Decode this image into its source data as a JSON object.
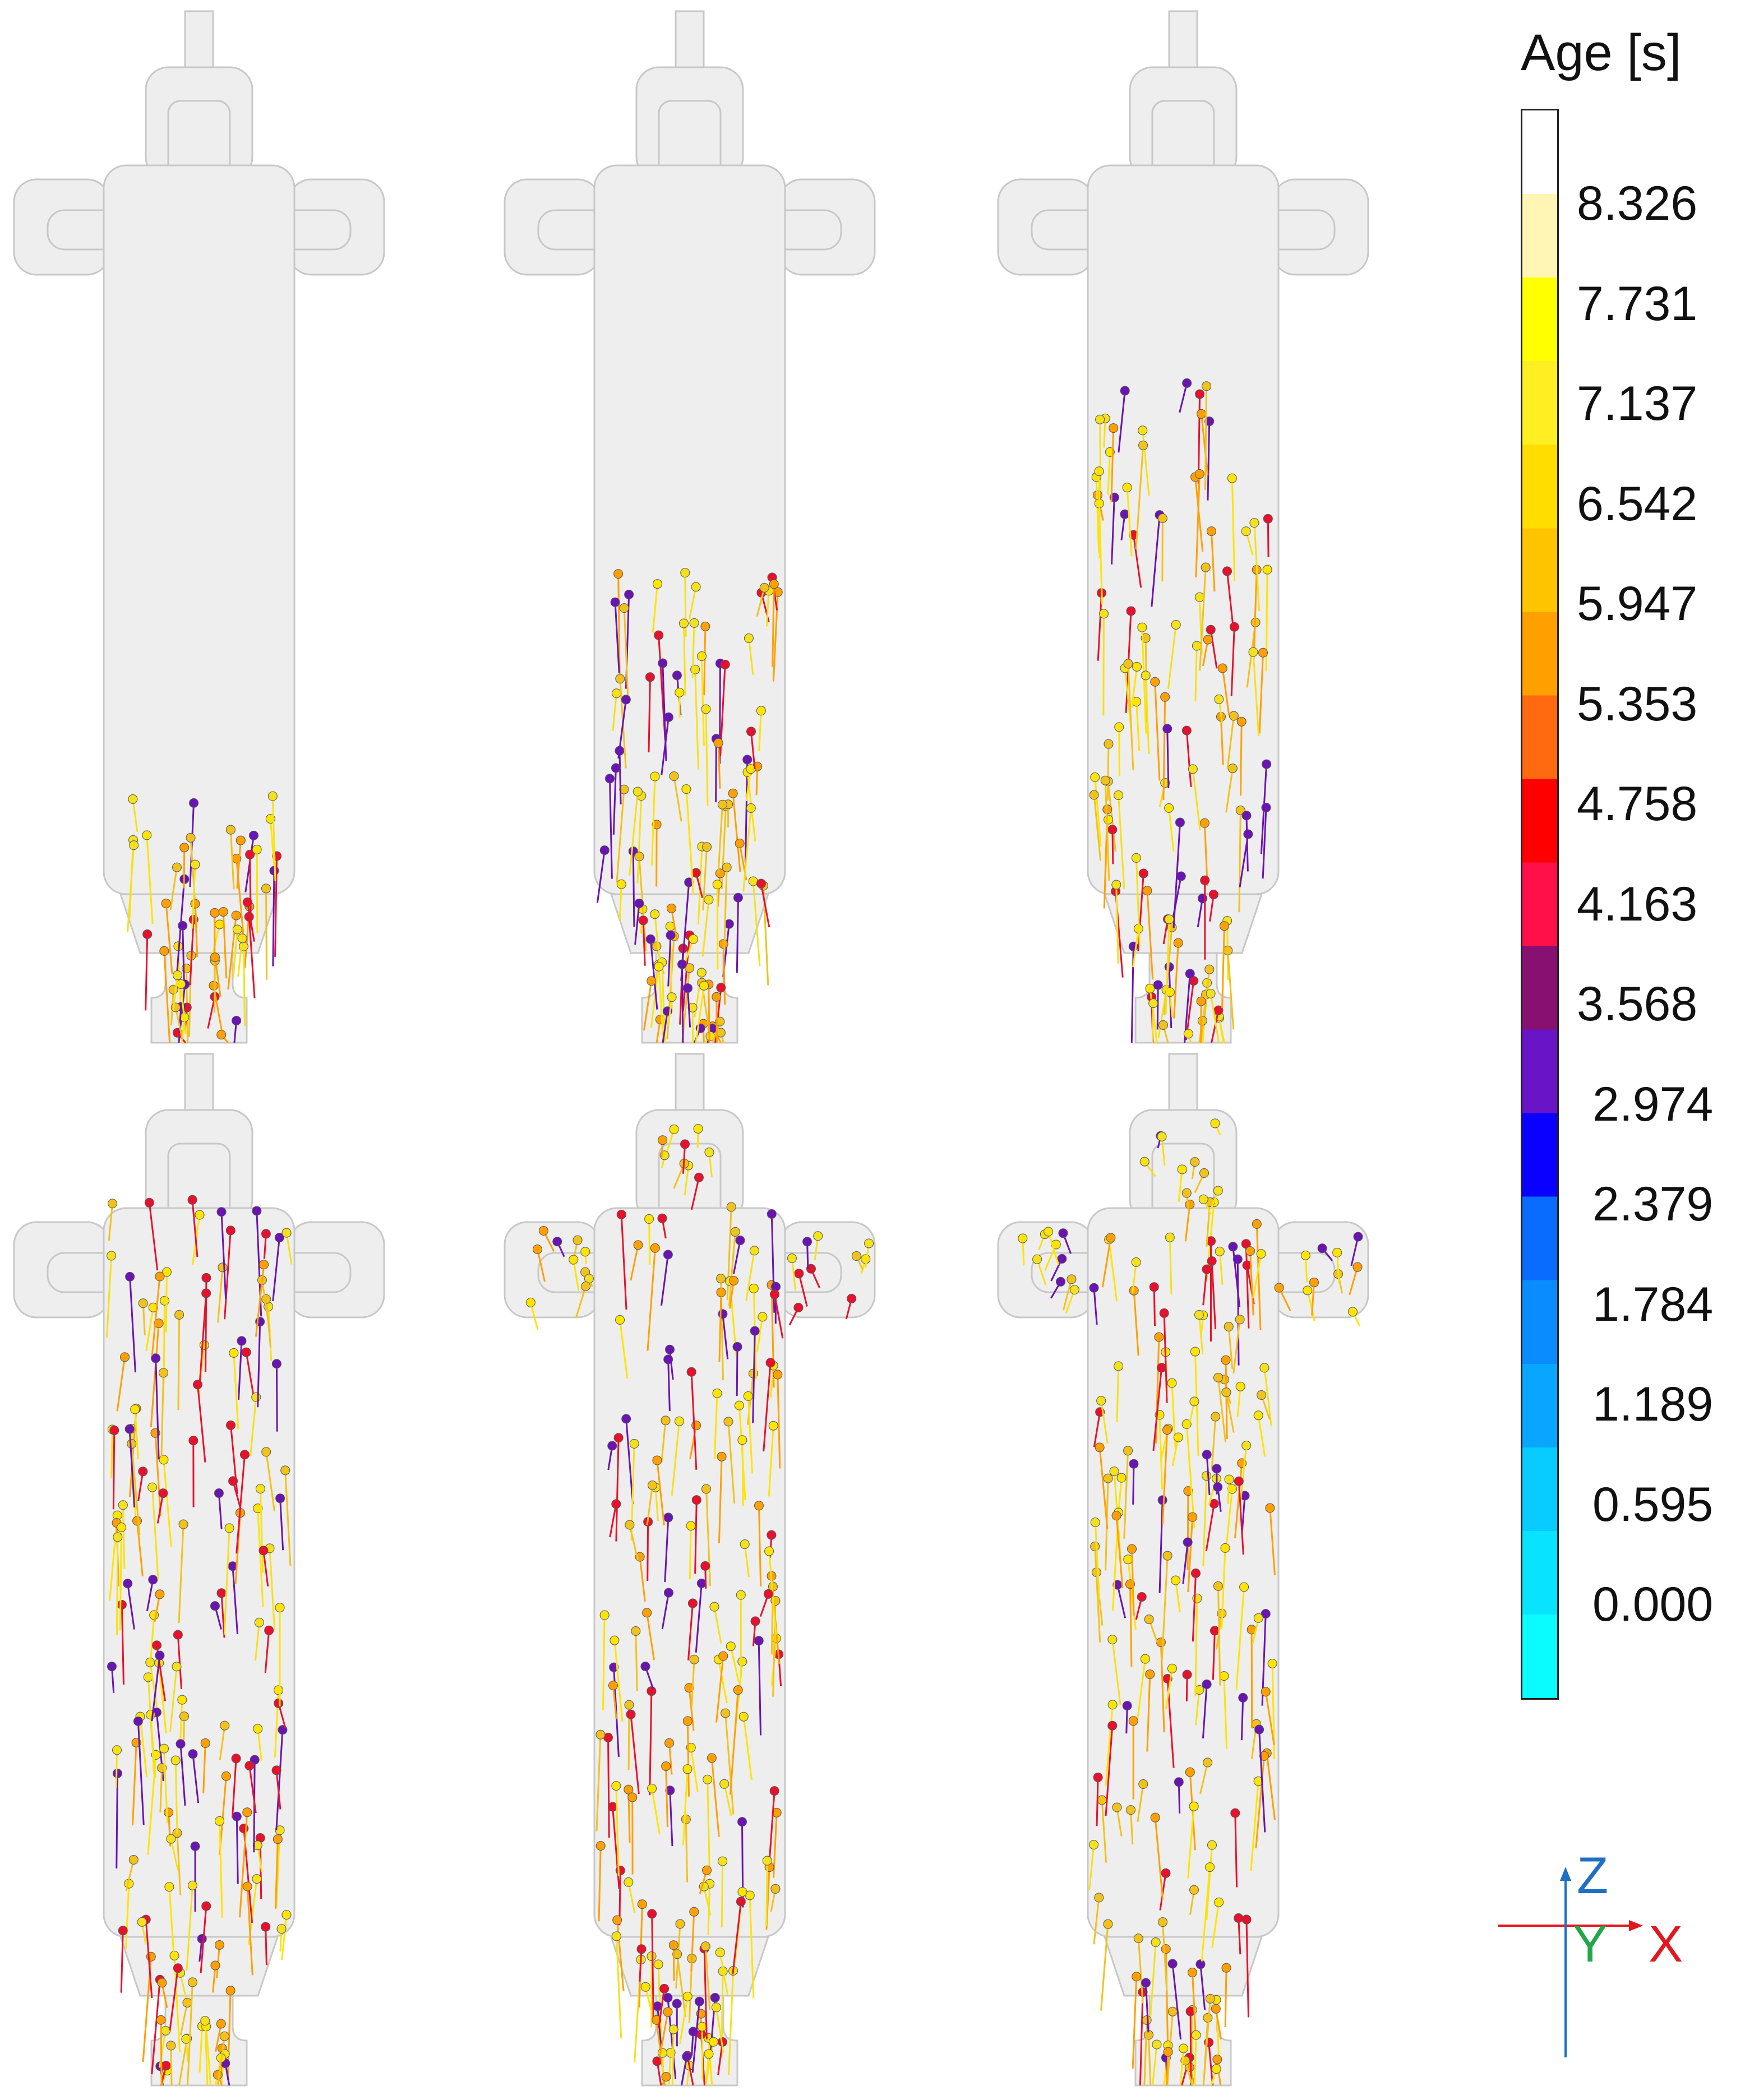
{
  "legend": {
    "title": "Age [s]",
    "labels": [
      "8.326",
      "7.731",
      "7.137",
      "6.542",
      "5.947",
      "5.353",
      "4.758",
      "4.163",
      "3.568",
      "2.974",
      "2.379",
      "1.784",
      "1.189",
      "0.595",
      "0.000"
    ],
    "band_colors": [
      "#ffffff",
      "#fff5b5",
      "#ffff00",
      "#ffee22",
      "#ffdd00",
      "#ffc400",
      "#ffa000",
      "#ff6a10",
      "#ff0000",
      "#ff1048",
      "#881070",
      "#6a14c8",
      "#0a00ff",
      "#0a6cff",
      "#0a8cff",
      "#08a6ff",
      "#08ccff",
      "#08e4ff",
      "#0afcff"
    ]
  },
  "axes": {
    "z": {
      "label": "Z",
      "color": "#1f6fc4"
    },
    "y": {
      "label": "Y",
      "color": "#22a84a"
    },
    "x": {
      "label": "X",
      "color": "#e0191f"
    }
  },
  "panels_count": 6,
  "particle_colors": [
    "#f5e11a",
    "#f2c21c",
    "#6a14b4",
    "#e8112d",
    "#ffa000",
    "#ffe400"
  ]
}
